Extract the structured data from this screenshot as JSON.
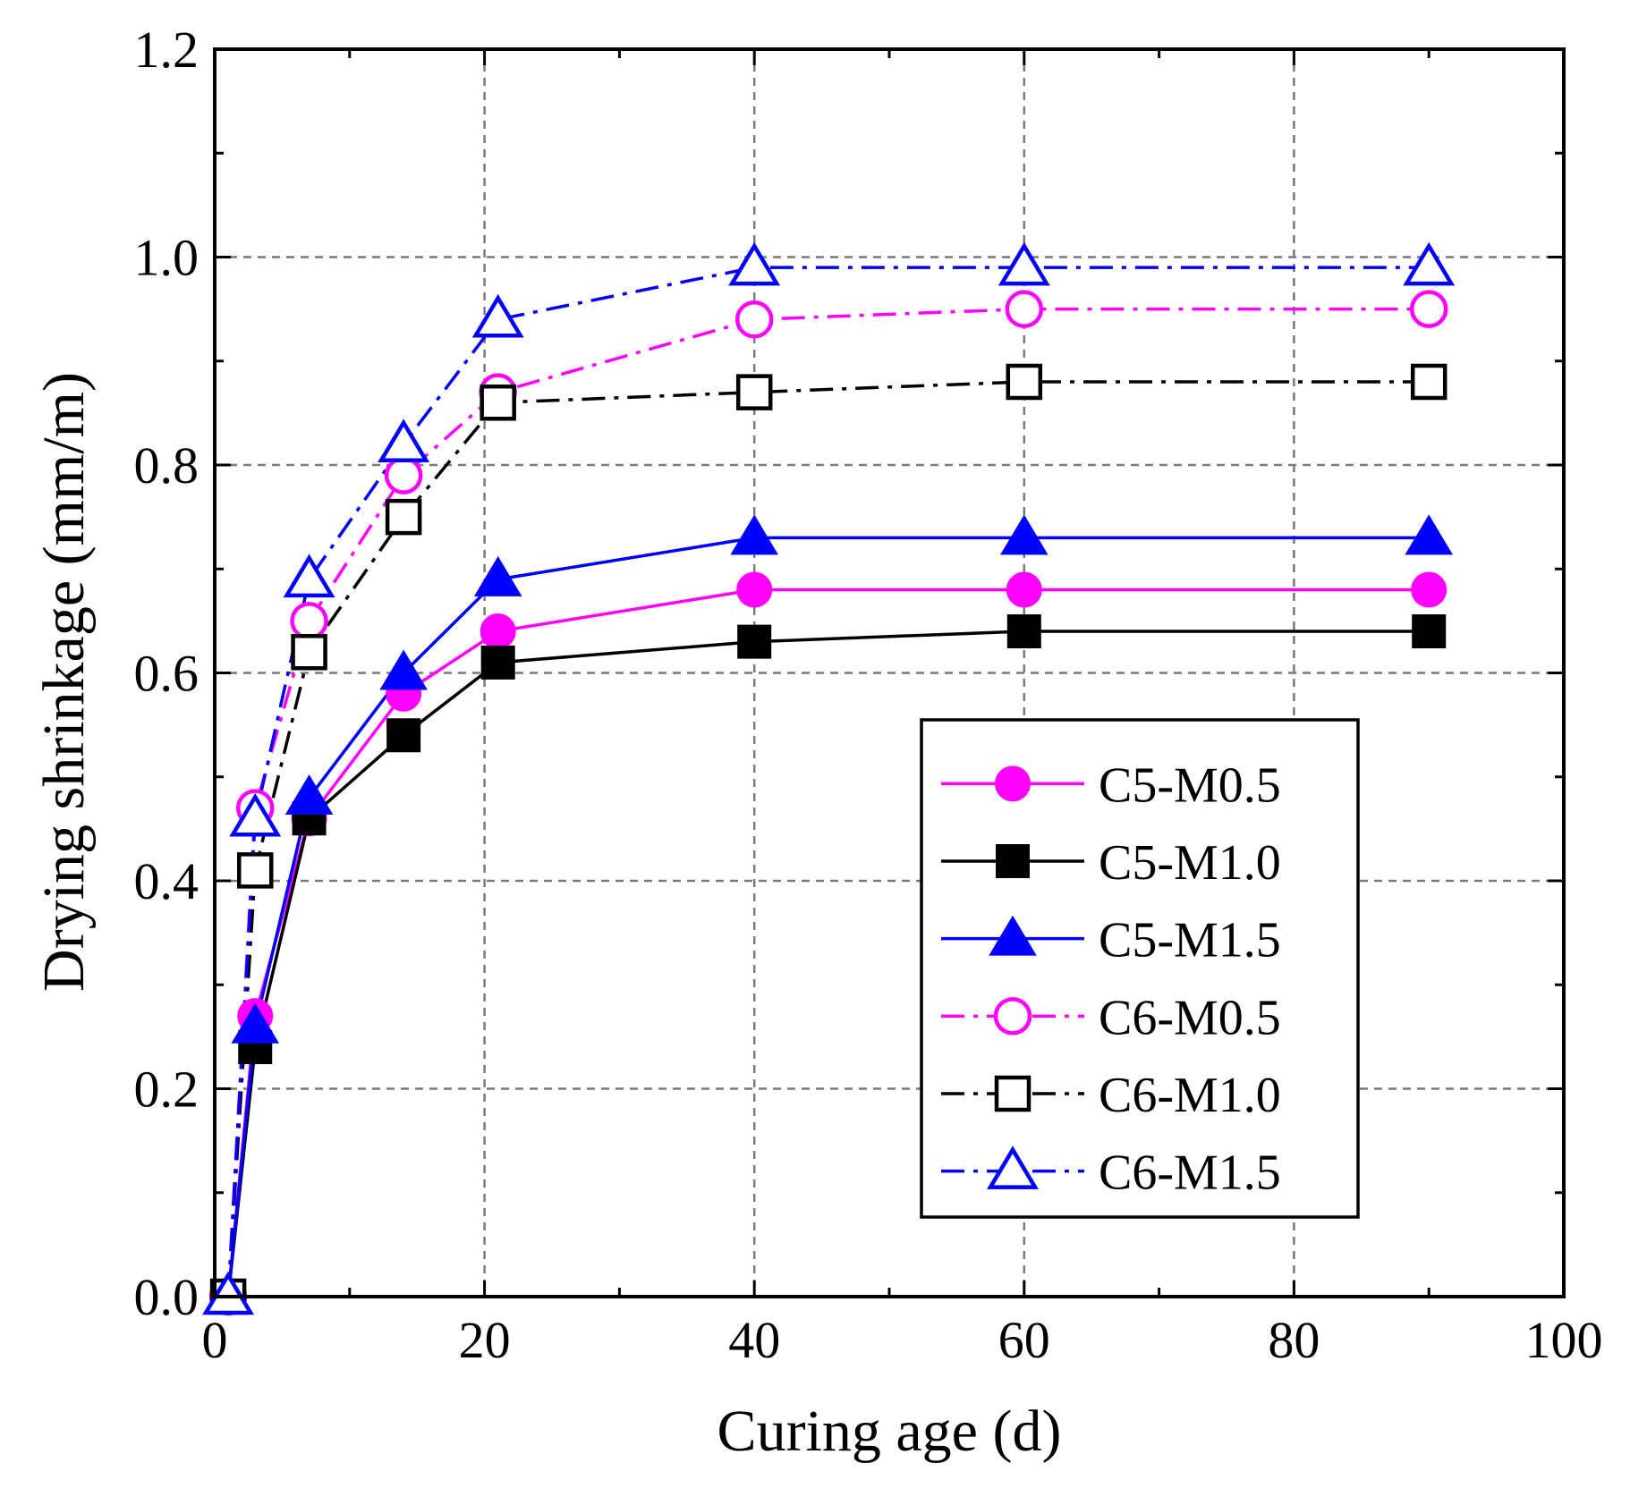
{
  "chart_data": {
    "type": "line",
    "title": "",
    "xlabel": "Curing age (d)",
    "ylabel": "Drying shrinkage (mm/m)",
    "xlim": [
      0,
      100
    ],
    "ylim": [
      0,
      1.2
    ],
    "xticks": [
      "0",
      "20",
      "40",
      "60",
      "80",
      "100"
    ],
    "yticks": [
      "0.0",
      "0.2",
      "0.4",
      "0.6",
      "0.8",
      "1.0",
      "1.2"
    ],
    "grid": true,
    "legend_position": "bottom-right",
    "x": [
      1,
      3,
      7,
      14,
      21,
      40,
      60,
      90
    ],
    "series": [
      {
        "name": "C5-M0.5",
        "values": [
          0.0,
          0.27,
          0.46,
          0.58,
          0.64,
          0.68,
          0.68,
          0.68
        ],
        "color": "#ff00ff",
        "marker": "circle",
        "filled": true,
        "dash": "solid"
      },
      {
        "name": "C5-M1.0",
        "values": [
          0.0,
          0.24,
          0.46,
          0.54,
          0.61,
          0.63,
          0.64,
          0.64
        ],
        "color": "#000000",
        "marker": "square",
        "filled": true,
        "dash": "solid"
      },
      {
        "name": "C5-M1.5",
        "values": [
          0.0,
          0.26,
          0.48,
          0.6,
          0.69,
          0.73,
          0.73,
          0.73
        ],
        "color": "#0000ff",
        "marker": "triangle",
        "filled": true,
        "dash": "solid"
      },
      {
        "name": "C6-M0.5",
        "values": [
          0.0,
          0.47,
          0.65,
          0.79,
          0.87,
          0.94,
          0.95,
          0.95
        ],
        "color": "#ff00ff",
        "marker": "circle",
        "filled": false,
        "dash": "dashdot"
      },
      {
        "name": "C6-M1.0",
        "values": [
          0.0,
          0.41,
          0.62,
          0.75,
          0.86,
          0.87,
          0.88,
          0.88
        ],
        "color": "#000000",
        "marker": "square",
        "filled": false,
        "dash": "dashdot"
      },
      {
        "name": "C6-M1.5",
        "values": [
          0.0,
          0.46,
          0.69,
          0.82,
          0.94,
          0.99,
          0.99,
          0.99
        ],
        "color": "#0000ff",
        "marker": "triangle",
        "filled": false,
        "dash": "dashdot"
      }
    ]
  }
}
